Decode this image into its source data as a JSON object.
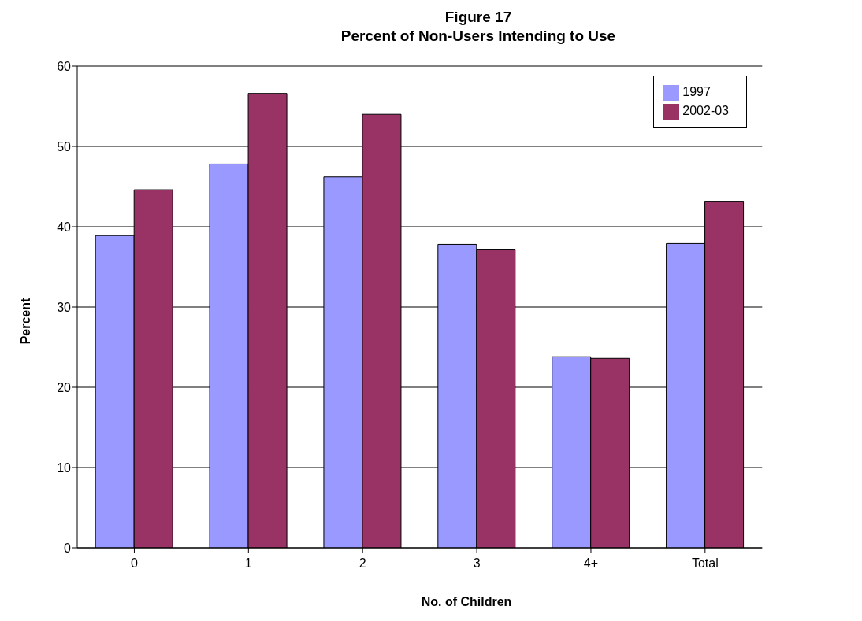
{
  "chart_data": {
    "type": "bar",
    "title": "Figure 17\nPercent of Non-Users Intending to Use",
    "xlabel": "No. of Children",
    "ylabel": "Percent",
    "categories": [
      "0",
      "1",
      "2",
      "3",
      "4+",
      "Total"
    ],
    "series": [
      {
        "name": "1997",
        "color": "#9999ff",
        "values": [
          38.9,
          47.8,
          46.2,
          37.8,
          23.8,
          37.9
        ]
      },
      {
        "name": "2002-03",
        "color": "#993366",
        "values": [
          44.6,
          56.6,
          54.0,
          37.2,
          23.6,
          43.1
        ]
      }
    ],
    "ylim": [
      0,
      60
    ],
    "yticks": [
      0,
      10,
      20,
      30,
      40,
      50,
      60
    ],
    "grid": "y",
    "legend": "top right"
  }
}
